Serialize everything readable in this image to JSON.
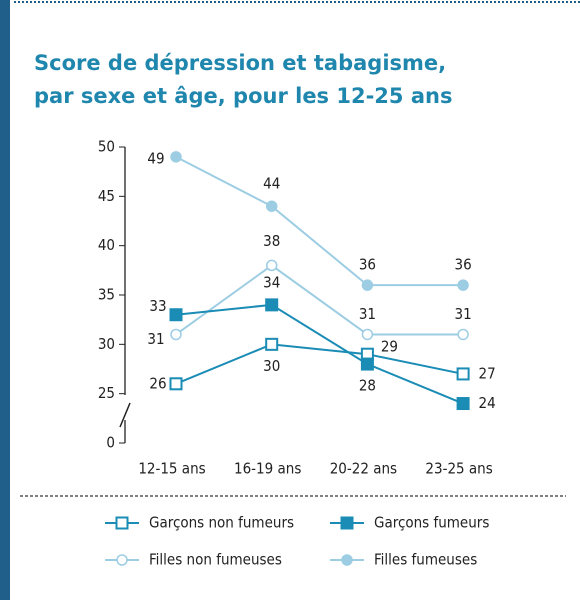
{
  "chart_data": {
    "type": "line",
    "title": [
      "Score de dépression et tabagisme,",
      "par sexe et âge, pour les 12-25 ans"
    ],
    "categories": [
      "12-15 ans",
      "16-19 ans",
      "20-22 ans",
      "23-25 ans"
    ],
    "ylim": [
      20,
      50
    ],
    "yticks": [
      0,
      25,
      30,
      35,
      40,
      45,
      50
    ],
    "axis_break": true,
    "series": [
      {
        "name": "Garçons non fumeurs",
        "color": "#1a8cb5",
        "marker": "square-open",
        "values": [
          26,
          30,
          29,
          27
        ]
      },
      {
        "name": "Garçons fumeurs",
        "color": "#1a8cb5",
        "marker": "square-filled",
        "values": [
          33,
          34,
          28,
          24
        ]
      },
      {
        "name": "Filles non fumeuses",
        "color": "#9dcde3",
        "marker": "circle-open",
        "values": [
          31,
          38,
          31,
          31
        ]
      },
      {
        "name": "Filles fumeuses",
        "color": "#9dcde3",
        "marker": "circle-filled",
        "values": [
          49,
          44,
          36,
          36
        ]
      }
    ]
  }
}
